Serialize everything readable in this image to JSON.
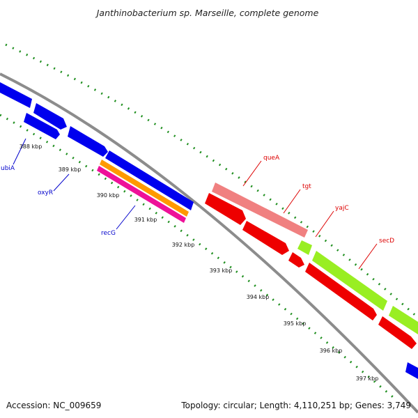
{
  "title": "Janthinobacterium sp. Marseille, complete genome",
  "footer": {
    "accession": "Accession: NC_009659",
    "topology": "Topology: circular; Length: 4,110,251 bp; Genes: 3,749"
  },
  "colors": {
    "backbone": "#8c8c8c",
    "ticks": "#1f8f1f",
    "blue": "#0000ee",
    "red": "#ee0000",
    "salmon": "#f08080",
    "lime": "#99ee22",
    "orange": "#ff9900",
    "magenta": "#ee1199",
    "label_blue": "#0000cc",
    "label_red": "#dd0000"
  },
  "ticks": [
    {
      "label": "388 kbp"
    },
    {
      "label": "389 kbp"
    },
    {
      "label": "390 kbp"
    },
    {
      "label": "391 kbp"
    },
    {
      "label": "392 kbp"
    },
    {
      "label": "393 kbp"
    },
    {
      "label": "394 kbp"
    },
    {
      "label": "395 kbp"
    },
    {
      "label": "396 kbp"
    },
    {
      "label": "397 kbp"
    }
  ],
  "gene_labels": [
    {
      "name": "ubiA",
      "color": "label_blue"
    },
    {
      "name": "oxyR",
      "color": "label_blue"
    },
    {
      "name": "recG",
      "color": "label_blue"
    },
    {
      "name": "queA",
      "color": "label_red"
    },
    {
      "name": "tgt",
      "color": "label_red"
    },
    {
      "name": "yajC",
      "color": "label_red"
    },
    {
      "name": "secD",
      "color": "label_red"
    }
  ]
}
